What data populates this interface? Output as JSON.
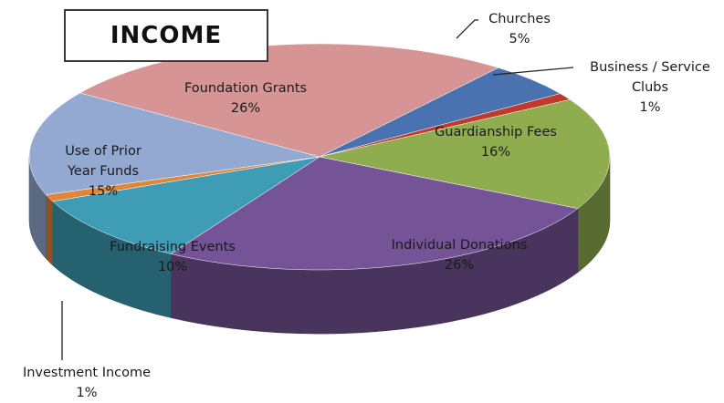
{
  "chart_data": {
    "type": "pie",
    "title": "INCOME",
    "slices": [
      {
        "label": "Churches",
        "value": 5,
        "display": "5%",
        "color": "#4a72b0"
      },
      {
        "label": "Business / Service Clubs",
        "value": 1,
        "display": "1%",
        "color": "#c0392b"
      },
      {
        "label": "Guardianship Fees",
        "value": 16,
        "display": "16%",
        "color": "#8fad4f"
      },
      {
        "label": "Individual Donations",
        "value": 26,
        "display": "26%",
        "color": "#745496"
      },
      {
        "label": "Fundraising Events",
        "value": 10,
        "display": "10%",
        "color": "#3e9cb5"
      },
      {
        "label": "Investment Income",
        "value": 1,
        "display": "1%",
        "color": "#e0863a"
      },
      {
        "label": "Use of Prior Year Funds",
        "value": 15,
        "display": "15%",
        "color": "#93a9d2"
      },
      {
        "label": "Foundation Grants",
        "value": 26,
        "display": "26%",
        "color": "#d69494"
      }
    ]
  }
}
